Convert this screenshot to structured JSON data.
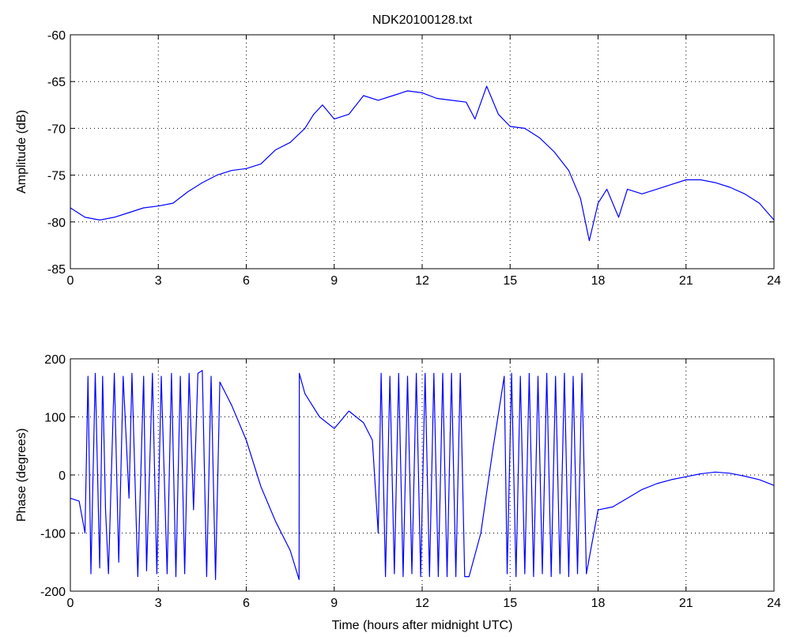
{
  "figure": {
    "title": "NDK20100128.txt",
    "line_color": "#0000ff",
    "axes_color": "#000000",
    "grid_color": "#000000",
    "background": "#ffffff"
  },
  "chart_data": [
    {
      "type": "line",
      "title": "NDK20100128.txt",
      "xlabel": "",
      "ylabel": "Amplitude (dB)",
      "xlim": [
        0,
        24
      ],
      "ylim": [
        -85,
        -60
      ],
      "xticks": [
        0,
        3,
        6,
        9,
        12,
        15,
        18,
        21,
        24
      ],
      "yticks": [
        -85,
        -80,
        -75,
        -70,
        -65,
        -60
      ],
      "grid": true,
      "series": [
        {
          "x": [
            0,
            0.5,
            1,
            1.5,
            2,
            2.5,
            3,
            3.5,
            4,
            4.5,
            5,
            5.5,
            6,
            6.5,
            7,
            7.5,
            8,
            8.3,
            8.6,
            9,
            9.5,
            10,
            10.5,
            11,
            11.5,
            12,
            12.5,
            13,
            13.5,
            13.8,
            14.2,
            14.6,
            15,
            15.5,
            16,
            16.5,
            17,
            17.4,
            17.7,
            18,
            18.3,
            18.7,
            19,
            19.5,
            20,
            20.5,
            21,
            21.5,
            22,
            22.5,
            23,
            23.5,
            24
          ],
          "y": [
            -78.5,
            -79.5,
            -79.8,
            -79.5,
            -79.0,
            -78.5,
            -78.3,
            -78.0,
            -76.8,
            -75.8,
            -75.0,
            -74.5,
            -74.3,
            -73.8,
            -72.3,
            -71.5,
            -70.0,
            -68.5,
            -67.5,
            -69.0,
            -68.5,
            -66.5,
            -67.0,
            -66.5,
            -66.0,
            -66.2,
            -66.8,
            -67.0,
            -67.2,
            -69.0,
            -65.5,
            -68.5,
            -69.8,
            -70.0,
            -71.0,
            -72.5,
            -74.5,
            -77.5,
            -82.0,
            -78.0,
            -76.5,
            -79.5,
            -76.5,
            -77.0,
            -76.5,
            -76.0,
            -75.5,
            -75.5,
            -75.8,
            -76.3,
            -77.0,
            -78.0,
            -79.8
          ]
        }
      ]
    },
    {
      "type": "line",
      "title": "",
      "xlabel": "Time (hours after midnight UTC)",
      "ylabel": "Phase (degrees)",
      "xlim": [
        0,
        24
      ],
      "ylim": [
        -200,
        200
      ],
      "xticks": [
        0,
        3,
        6,
        9,
        12,
        15,
        18,
        21,
        24
      ],
      "yticks": [
        -200,
        -100,
        0,
        100,
        200
      ],
      "grid": true,
      "series": [
        {
          "x": [
            0,
            0.3,
            0.5,
            0.6,
            0.7,
            0.85,
            1.0,
            1.1,
            1.2,
            1.3,
            1.5,
            1.65,
            1.8,
            2.0,
            2.1,
            2.3,
            2.5,
            2.6,
            2.8,
            2.95,
            3.1,
            3.3,
            3.45,
            3.6,
            3.75,
            3.9,
            4.05,
            4.2,
            4.35,
            4.5,
            4.65,
            4.8,
            4.95,
            5.1,
            5.5,
            6.0,
            6.5,
            7.0,
            7.5,
            7.8,
            7.81,
            8.0,
            8.5,
            9.0,
            9.5,
            10.0,
            10.3,
            10.5,
            10.6,
            10.75,
            10.9,
            11.05,
            11.2,
            11.35,
            11.5,
            11.65,
            11.8,
            11.95,
            12.1,
            12.25,
            12.4,
            12.55,
            12.7,
            12.85,
            13.0,
            13.15,
            13.3,
            13.45,
            13.6,
            14.0,
            14.4,
            14.8,
            14.9,
            15.05,
            15.2,
            15.35,
            15.5,
            15.65,
            15.8,
            15.95,
            16.1,
            16.25,
            16.4,
            16.55,
            16.7,
            16.85,
            17.0,
            17.15,
            17.3,
            17.45,
            17.6,
            18.0,
            18.5,
            19.0,
            19.5,
            20.0,
            20.5,
            21.0,
            21.5,
            22.0,
            22.5,
            23.0,
            23.5,
            24.0
          ],
          "y": [
            -40,
            -45,
            -100,
            170,
            -170,
            175,
            -160,
            170,
            -60,
            -170,
            175,
            -150,
            170,
            -40,
            175,
            -175,
            170,
            -165,
            175,
            -170,
            170,
            -170,
            175,
            -175,
            170,
            -170,
            175,
            -60,
            175,
            180,
            -175,
            170,
            -180,
            160,
            120,
            60,
            -20,
            -80,
            -130,
            -180,
            175,
            140,
            100,
            80,
            110,
            90,
            60,
            -100,
            175,
            -175,
            170,
            -170,
            175,
            -175,
            170,
            -170,
            175,
            -175,
            175,
            -175,
            175,
            -175,
            175,
            -175,
            175,
            -175,
            175,
            -175,
            -175,
            -100,
            40,
            170,
            -170,
            175,
            -175,
            170,
            -170,
            175,
            -175,
            170,
            -170,
            175,
            -175,
            170,
            -170,
            175,
            -175,
            170,
            -170,
            175,
            -170,
            -60,
            -55,
            -40,
            -25,
            -15,
            -8,
            -3,
            2,
            5,
            3,
            -2,
            -8,
            -18
          ]
        }
      ]
    }
  ]
}
